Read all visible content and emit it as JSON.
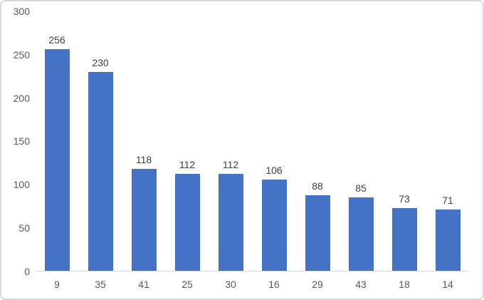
{
  "chart_data": {
    "type": "bar",
    "categories": [
      "9",
      "35",
      "41",
      "25",
      "30",
      "16",
      "29",
      "43",
      "18",
      "14"
    ],
    "values": [
      256,
      230,
      118,
      112,
      112,
      106,
      88,
      85,
      73,
      71
    ],
    "title": "",
    "xlabel": "",
    "ylabel": "",
    "ylim": [
      0,
      300
    ],
    "yticks": [
      0,
      50,
      100,
      150,
      200,
      250,
      300
    ],
    "grid": false,
    "legend": false,
    "data_labels_shown": true,
    "colors": {
      "bar": "#4472c4",
      "data_label": "#404040",
      "axis_label": "#595959",
      "axis_line": "#d9d9d9",
      "frame_border": "#d5d8dc",
      "background": "#ffffff"
    }
  }
}
